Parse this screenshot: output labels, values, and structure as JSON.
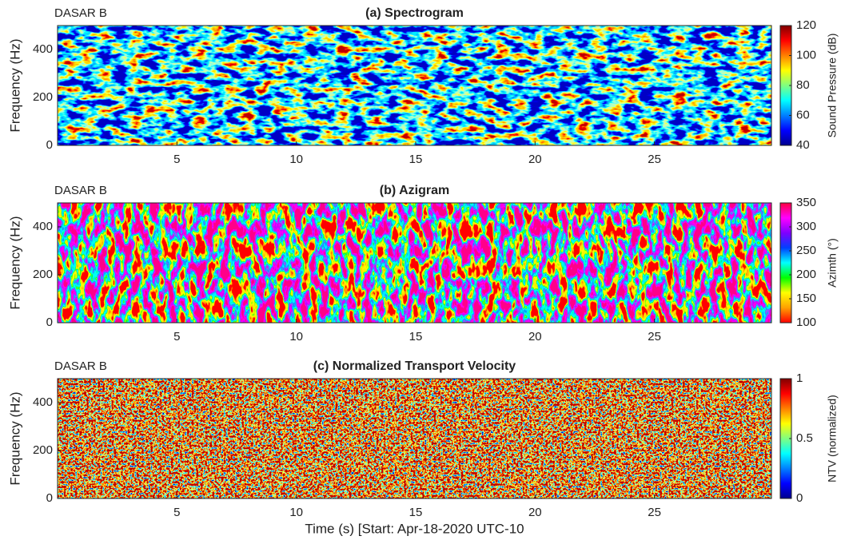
{
  "chart_data": [
    {
      "type": "heatmap",
      "title": "(a) Spectrogram",
      "annotation": "DASAR B",
      "ylabel": "Frequency (Hz)",
      "xlim": [
        0,
        29.9
      ],
      "xticks": [
        5,
        10,
        15,
        20,
        25
      ],
      "ylim": [
        0,
        500
      ],
      "yticks": [
        0,
        200,
        400
      ],
      "colorbar": {
        "label": "Sound Pressure (dB)",
        "lim": [
          40,
          120
        ],
        "ticks": [
          40,
          60,
          80,
          100,
          120
        ],
        "colors": [
          "#00008f",
          "#0000ff",
          "#0080ff",
          "#00ffff",
          "#80ff80",
          "#ffff00",
          "#ff8000",
          "#ff0000",
          "#800000"
        ]
      }
    },
    {
      "type": "heatmap",
      "title": "(b) Azigram",
      "annotation": "DASAR B",
      "ylabel": "Frequency (Hz)",
      "xlim": [
        0,
        29.9
      ],
      "xticks": [
        5,
        10,
        15,
        20,
        25
      ],
      "ylim": [
        0,
        500
      ],
      "yticks": [
        0,
        200,
        400
      ],
      "colorbar": {
        "label": "Azimth (°)",
        "lim": [
          100,
          350
        ],
        "ticks": [
          100,
          150,
          200,
          250,
          300,
          350
        ],
        "colors": [
          "#ff0000",
          "#ffa000",
          "#ffff00",
          "#00ff00",
          "#00ffff",
          "#0040ff",
          "#8000ff",
          "#ff00ff",
          "#ff0040"
        ]
      }
    },
    {
      "type": "heatmap",
      "title": "(c) Normalized Transport Velocity",
      "annotation": "DASAR B",
      "ylabel": "Frequency (Hz)",
      "xlabel": "Time (s) [Start: Apr-18-2020 UTC-10",
      "xlim": [
        0,
        29.9
      ],
      "xticks": [
        5,
        10,
        15,
        20,
        25
      ],
      "ylim": [
        0,
        500
      ],
      "yticks": [
        0,
        200,
        400
      ],
      "colorbar": {
        "label": "NTV (normalized)",
        "lim": [
          0,
          1
        ],
        "ticks": [
          0,
          0.5,
          1
        ],
        "colors": [
          "#00008f",
          "#0000ff",
          "#0080ff",
          "#00ffff",
          "#80ff80",
          "#ffff00",
          "#ff8000",
          "#ff0000",
          "#800000"
        ]
      }
    }
  ]
}
